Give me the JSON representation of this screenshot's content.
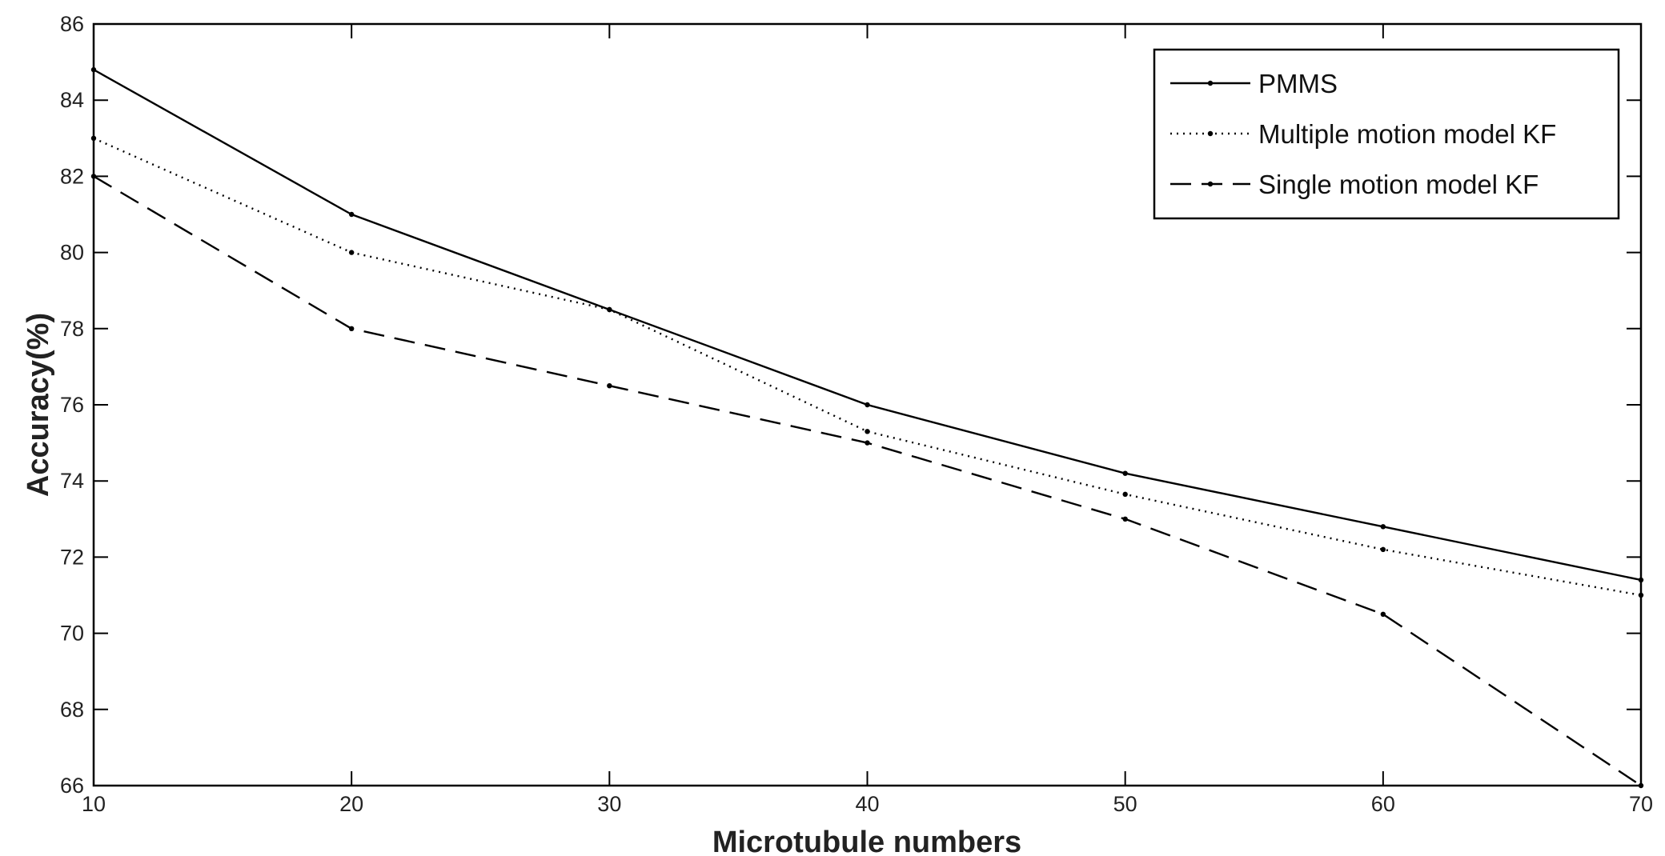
{
  "chart_data": {
    "type": "line",
    "title": "",
    "xlabel": "Microtubule numbers",
    "ylabel": "Accuracy(%)",
    "x": [
      10,
      20,
      30,
      40,
      50,
      60,
      70
    ],
    "xlim": [
      10,
      70
    ],
    "ylim": [
      66,
      86
    ],
    "xticks": [
      "10",
      "20",
      "30",
      "40",
      "50",
      "60",
      "70"
    ],
    "yticks": [
      "66",
      "68",
      "70",
      "72",
      "74",
      "76",
      "78",
      "80",
      "82",
      "84",
      "86"
    ],
    "grid": false,
    "legend_position": "top-right",
    "series": [
      {
        "name": "PMMS",
        "style": "solid",
        "color": "#000000",
        "values": [
          84.8,
          81.0,
          78.5,
          76.0,
          74.2,
          72.8,
          71.4
        ]
      },
      {
        "name": "Multiple motion model KF",
        "style": "dotted",
        "color": "#000000",
        "values": [
          83.0,
          80.0,
          78.5,
          75.3,
          73.65,
          72.2,
          71.0
        ]
      },
      {
        "name": "Single motion model KF",
        "style": "dashed",
        "color": "#000000",
        "values": [
          82.0,
          78.0,
          76.5,
          75.0,
          73.0,
          70.5,
          66.0
        ]
      }
    ]
  }
}
